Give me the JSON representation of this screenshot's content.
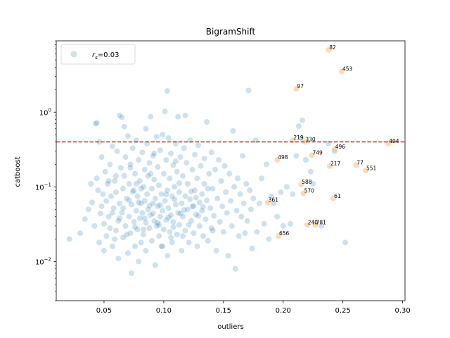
{
  "chart_data": {
    "type": "scatter",
    "title": "BigramShift",
    "xlabel": "outliers",
    "ylabel": "catboost",
    "xlim": [
      0.01,
      0.302
    ],
    "ylim": [
      0.003,
      9.0
    ],
    "yscale": "log",
    "x_ticks": [
      {
        "value": 0.05,
        "label": "0.05"
      },
      {
        "value": 0.1,
        "label": "0.10"
      },
      {
        "value": 0.15,
        "label": "0.15"
      },
      {
        "value": 0.2,
        "label": "0.20"
      },
      {
        "value": 0.25,
        "label": "0.25"
      },
      {
        "value": 0.3,
        "label": "0.30"
      }
    ],
    "y_ticks": [
      {
        "value": 0.01,
        "base": "10",
        "exp": "−2"
      },
      {
        "value": 0.1,
        "base": "10",
        "exp": "−1"
      },
      {
        "value": 1,
        "base": "10",
        "exp": "0"
      }
    ],
    "legend": {
      "placement": "top-left",
      "entry_label_main": "r",
      "entry_label_sub": "s",
      "entry_label_rest": "=0.03"
    },
    "threshold_line": {
      "y": 0.4,
      "color": "#d62728",
      "style": "dashed"
    },
    "colors": {
      "main": "#1f77b4",
      "highlight": "#ffbb78",
      "threshold": "#d62728"
    },
    "main_points": [
      [
        0.021,
        0.02
      ],
      [
        0.03,
        0.024
      ],
      [
        0.034,
        0.037
      ],
      [
        0.037,
        0.05
      ],
      [
        0.039,
        0.11
      ],
      [
        0.04,
        0.062
      ],
      [
        0.042,
        0.03
      ],
      [
        0.043,
        0.7
      ],
      [
        0.044,
        0.72
      ],
      [
        0.044,
        0.13
      ],
      [
        0.045,
        0.09
      ],
      [
        0.046,
        0.018
      ],
      [
        0.046,
        0.4
      ],
      [
        0.047,
        0.044
      ],
      [
        0.048,
        0.055
      ],
      [
        0.048,
        0.25
      ],
      [
        0.049,
        0.08
      ],
      [
        0.05,
        0.014
      ],
      [
        0.05,
        0.032
      ],
      [
        0.051,
        0.16
      ],
      [
        0.052,
        0.022
      ],
      [
        0.052,
        0.065
      ],
      [
        0.053,
        0.11
      ],
      [
        0.054,
        0.04
      ],
      [
        0.055,
        0.2
      ],
      [
        0.055,
        0.028
      ],
      [
        0.056,
        0.075
      ],
      [
        0.057,
        0.35
      ],
      [
        0.057,
        0.016
      ],
      [
        0.058,
        0.052
      ],
      [
        0.059,
        0.12
      ],
      [
        0.06,
        0.026
      ],
      [
        0.06,
        0.085
      ],
      [
        0.061,
        0.3
      ],
      [
        0.062,
        0.035
      ],
      [
        0.062,
        0.011
      ],
      [
        0.063,
        0.06
      ],
      [
        0.063,
        0.9
      ],
      [
        0.064,
        0.18
      ],
      [
        0.065,
        0.045
      ],
      [
        0.065,
        0.85
      ],
      [
        0.066,
        0.021
      ],
      [
        0.066,
        0.095
      ],
      [
        0.067,
        0.14
      ],
      [
        0.067,
        0.64
      ],
      [
        0.068,
        0.03
      ],
      [
        0.068,
        0.25
      ],
      [
        0.069,
        0.07
      ],
      [
        0.07,
        0.013
      ],
      [
        0.07,
        0.48
      ],
      [
        0.071,
        0.04
      ],
      [
        0.071,
        0.11
      ],
      [
        0.072,
        0.024
      ],
      [
        0.072,
        0.2
      ],
      [
        0.073,
        0.058
      ],
      [
        0.073,
        0.007
      ],
      [
        0.074,
        0.33
      ],
      [
        0.075,
        0.034
      ],
      [
        0.075,
        0.09
      ],
      [
        0.076,
        0.016
      ],
      [
        0.076,
        0.15
      ],
      [
        0.077,
        0.048
      ],
      [
        0.077,
        0.42
      ],
      [
        0.078,
        0.027
      ],
      [
        0.078,
        0.075
      ],
      [
        0.079,
        0.01
      ],
      [
        0.079,
        0.23
      ],
      [
        0.08,
        0.038
      ],
      [
        0.08,
        0.12
      ],
      [
        0.081,
        0.06
      ],
      [
        0.081,
        0.018
      ],
      [
        0.082,
        0.29
      ],
      [
        0.082,
        0.045
      ],
      [
        0.083,
        0.1
      ],
      [
        0.083,
        0.023
      ],
      [
        0.084,
        0.17
      ],
      [
        0.084,
        0.065
      ],
      [
        0.085,
        0.033
      ],
      [
        0.085,
        0.014
      ],
      [
        0.086,
        0.38
      ],
      [
        0.086,
        0.08
      ],
      [
        0.087,
        0.05
      ],
      [
        0.087,
        0.14
      ],
      [
        0.088,
        0.028
      ],
      [
        0.088,
        0.21
      ],
      [
        0.089,
        0.87
      ],
      [
        0.089,
        0.042
      ],
      [
        0.09,
        0.095
      ],
      [
        0.09,
        0.019
      ],
      [
        0.091,
        0.26
      ],
      [
        0.091,
        0.06
      ],
      [
        0.092,
        0.035
      ],
      [
        0.092,
        0.125
      ],
      [
        0.093,
        0.009
      ],
      [
        0.093,
        0.07
      ],
      [
        0.094,
        0.47
      ],
      [
        0.094,
        0.03
      ],
      [
        0.095,
        0.185
      ],
      [
        0.095,
        0.055
      ],
      [
        0.096,
        0.022
      ],
      [
        0.096,
        0.105
      ],
      [
        0.097,
        0.04
      ],
      [
        0.097,
        0.31
      ],
      [
        0.098,
        0.016
      ],
      [
        0.098,
        0.08
      ],
      [
        0.099,
        0.5
      ],
      [
        0.099,
        0.048
      ],
      [
        0.1,
        0.027
      ],
      [
        0.1,
        0.15
      ],
      [
        0.101,
        1.02
      ],
      [
        0.101,
        0.065
      ],
      [
        0.102,
        0.036
      ],
      [
        0.102,
        0.23
      ],
      [
        0.103,
        0.012
      ],
      [
        0.103,
        0.09
      ],
      [
        0.104,
        0.45
      ],
      [
        0.104,
        0.052
      ],
      [
        0.105,
        0.025
      ],
      [
        0.105,
        0.13
      ],
      [
        0.106,
        0.042
      ],
      [
        0.106,
        0.28
      ],
      [
        0.107,
        0.075
      ],
      [
        0.107,
        0.018
      ],
      [
        0.108,
        0.195
      ],
      [
        0.108,
        0.034
      ],
      [
        0.109,
        0.1
      ],
      [
        0.11,
        0.058
      ],
      [
        0.11,
        0.38
      ],
      [
        0.111,
        0.023
      ],
      [
        0.111,
        0.16
      ],
      [
        0.112,
        0.045
      ],
      [
        0.112,
        0.87
      ],
      [
        0.113,
        0.085
      ],
      [
        0.113,
        0.031
      ],
      [
        0.114,
        0.25
      ],
      [
        0.115,
        0.06
      ],
      [
        0.115,
        0.014
      ],
      [
        0.116,
        0.14
      ],
      [
        0.116,
        0.04
      ],
      [
        0.117,
        0.33
      ],
      [
        0.118,
        0.075
      ],
      [
        0.118,
        0.026
      ],
      [
        0.119,
        0.21
      ],
      [
        0.12,
        0.05
      ],
      [
        0.12,
        0.11
      ],
      [
        0.121,
        0.018
      ],
      [
        0.122,
        0.42
      ],
      [
        0.122,
        0.068
      ],
      [
        0.123,
        0.035
      ],
      [
        0.124,
        0.17
      ],
      [
        0.124,
        0.055
      ],
      [
        0.125,
        0.024
      ],
      [
        0.126,
        0.27
      ],
      [
        0.126,
        0.09
      ],
      [
        0.127,
        0.043
      ],
      [
        0.128,
        0.13
      ],
      [
        0.128,
        0.016
      ],
      [
        0.129,
        0.36
      ],
      [
        0.13,
        0.062
      ],
      [
        0.13,
        0.03
      ],
      [
        0.131,
        0.19
      ],
      [
        0.132,
        0.08
      ],
      [
        0.132,
        0.048
      ],
      [
        0.133,
        0.022
      ],
      [
        0.134,
        0.24
      ],
      [
        0.134,
        0.11
      ],
      [
        0.135,
        0.037
      ],
      [
        0.136,
        0.74
      ],
      [
        0.136,
        0.066
      ],
      [
        0.137,
        0.019
      ],
      [
        0.138,
        0.15
      ],
      [
        0.139,
        0.052
      ],
      [
        0.14,
        0.028
      ],
      [
        0.14,
        0.29
      ],
      [
        0.141,
        0.095
      ],
      [
        0.142,
        0.041
      ],
      [
        0.143,
        0.17
      ],
      [
        0.144,
        0.014
      ],
      [
        0.145,
        0.07
      ],
      [
        0.146,
        0.23
      ],
      [
        0.147,
        0.034
      ],
      [
        0.148,
        0.12
      ],
      [
        0.149,
        0.055
      ],
      [
        0.15,
        0.025
      ],
      [
        0.151,
        0.19
      ],
      [
        0.152,
        0.085
      ],
      [
        0.153,
        0.045
      ],
      [
        0.154,
        0.012
      ],
      [
        0.155,
        0.15
      ],
      [
        0.156,
        0.065
      ],
      [
        0.157,
        0.03
      ],
      [
        0.158,
        0.56
      ],
      [
        0.159,
        0.1
      ],
      [
        0.16,
        0.008
      ],
      [
        0.161,
        0.048
      ],
      [
        0.162,
        0.13
      ],
      [
        0.163,
        0.022
      ],
      [
        0.164,
        0.08
      ],
      [
        0.165,
        0.04
      ],
      [
        0.166,
        0.26
      ],
      [
        0.167,
        0.06
      ],
      [
        0.168,
        0.024
      ],
      [
        0.169,
        0.11
      ],
      [
        0.17,
        0.035
      ],
      [
        0.171,
        1.95
      ],
      [
        0.172,
        0.09
      ],
      [
        0.173,
        0.05
      ],
      [
        0.174,
        0.015
      ],
      [
        0.175,
        0.07
      ],
      [
        0.177,
        0.42
      ],
      [
        0.178,
        0.025
      ],
      [
        0.18,
        0.06
      ],
      [
        0.182,
        0.13
      ],
      [
        0.184,
        0.032
      ],
      [
        0.186,
        0.2
      ],
      [
        0.188,
        0.02
      ],
      [
        0.19,
        0.075
      ],
      [
        0.192,
        0.06
      ],
      [
        0.195,
        0.04
      ],
      [
        0.198,
        0.085
      ],
      [
        0.2,
        0.03
      ],
      [
        0.203,
        0.1
      ],
      [
        0.206,
        0.032
      ],
      [
        0.208,
        0.08
      ],
      [
        0.211,
        0.26
      ],
      [
        0.213,
        0.65
      ],
      [
        0.215,
        0.45
      ],
      [
        0.216,
        0.78
      ],
      [
        0.219,
        0.23
      ],
      [
        0.223,
        0.16
      ],
      [
        0.225,
        0.11
      ],
      [
        0.232,
        0.03
      ],
      [
        0.252,
        0.018
      ],
      [
        0.243,
        0.3
      ],
      [
        0.238,
        0.38
      ],
      [
        0.103,
        1.92
      ],
      [
        0.118,
        0.9
      ],
      [
        0.085,
        0.6
      ],
      [
        0.072,
        0.18
      ],
      [
        0.06,
        0.14
      ],
      [
        0.095,
        0.033
      ],
      [
        0.106,
        0.021
      ],
      [
        0.076,
        0.029
      ],
      [
        0.088,
        0.056
      ],
      [
        0.099,
        0.016
      ],
      [
        0.114,
        0.044
      ],
      [
        0.121,
        0.031
      ],
      [
        0.127,
        0.072
      ],
      [
        0.066,
        0.052
      ],
      [
        0.054,
        0.12
      ],
      [
        0.059,
        0.02
      ],
      [
        0.081,
        0.095
      ],
      [
        0.092,
        0.28
      ],
      [
        0.11,
        0.22
      ],
      [
        0.133,
        0.054
      ],
      [
        0.141,
        0.026
      ],
      [
        0.069,
        0.023
      ],
      [
        0.074,
        0.086
      ],
      [
        0.079,
        0.062
      ],
      [
        0.084,
        0.038
      ],
      [
        0.091,
        0.044
      ],
      [
        0.097,
        0.057
      ],
      [
        0.102,
        0.079
      ],
      [
        0.108,
        0.029
      ],
      [
        0.113,
        0.112
      ],
      [
        0.117,
        0.049
      ],
      [
        0.123,
        0.087
      ],
      [
        0.129,
        0.041
      ],
      [
        0.057,
        0.045
      ],
      [
        0.063,
        0.038
      ],
      [
        0.071,
        0.066
      ],
      [
        0.077,
        0.11
      ],
      [
        0.083,
        0.027
      ],
      [
        0.089,
        0.15
      ],
      [
        0.096,
        0.031
      ],
      [
        0.104,
        0.039
      ],
      [
        0.109,
        0.068
      ],
      [
        0.116,
        0.022
      ],
      [
        0.125,
        0.055
      ],
      [
        0.137,
        0.095
      ]
    ],
    "highlight_points": [
      {
        "label": "82",
        "x": 0.238,
        "y": 6.8
      },
      {
        "label": "453",
        "x": 0.249,
        "y": 3.5
      },
      {
        "label": "97",
        "x": 0.211,
        "y": 2.05
      },
      {
        "label": "219",
        "x": 0.208,
        "y": 0.42
      },
      {
        "label": "330",
        "x": 0.218,
        "y": 0.4
      },
      {
        "label": "494",
        "x": 0.288,
        "y": 0.38
      },
      {
        "label": "496",
        "x": 0.243,
        "y": 0.32
      },
      {
        "label": "749",
        "x": 0.224,
        "y": 0.265
      },
      {
        "label": "498",
        "x": 0.195,
        "y": 0.23
      },
      {
        "label": "217",
        "x": 0.239,
        "y": 0.19
      },
      {
        "label": "77",
        "x": 0.261,
        "y": 0.195
      },
      {
        "label": "551",
        "x": 0.269,
        "y": 0.165
      },
      {
        "label": "588",
        "x": 0.215,
        "y": 0.108
      },
      {
        "label": "570",
        "x": 0.217,
        "y": 0.082
      },
      {
        "label": "61",
        "x": 0.242,
        "y": 0.07
      },
      {
        "label": "361",
        "x": 0.187,
        "y": 0.062
      },
      {
        "label": "240",
        "x": 0.22,
        "y": 0.031
      },
      {
        "label": "781",
        "x": 0.227,
        "y": 0.031
      },
      {
        "label": "656",
        "x": 0.196,
        "y": 0.022
      }
    ]
  }
}
